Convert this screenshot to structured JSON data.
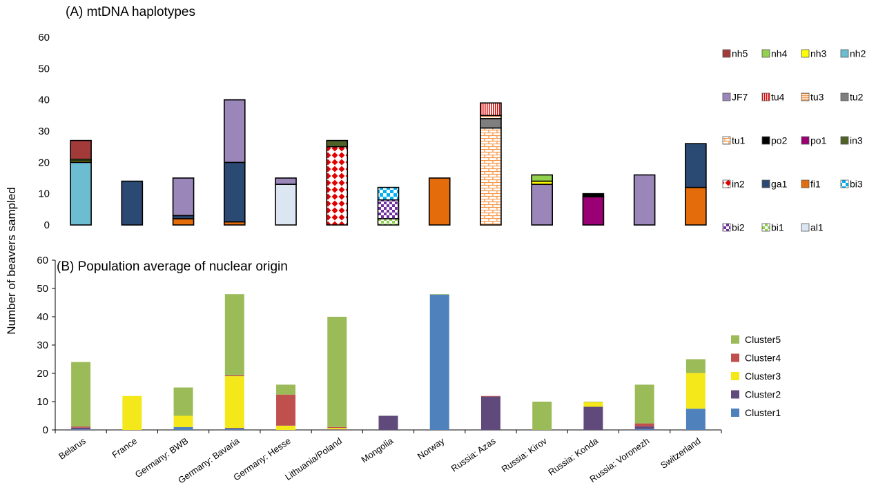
{
  "y_axis_label": "Number of beavers sampled",
  "chart_data": [
    {
      "type": "bar",
      "stacked": true,
      "title": "(A) mtDNA haplotypes",
      "xlabel": "",
      "ylabel": "Number of beavers sampled",
      "ylim": [
        0,
        60
      ],
      "yticks": [
        0,
        10,
        20,
        30,
        40,
        50,
        60
      ],
      "grid": false,
      "legend_position": "right",
      "categories": [
        "Belarus",
        "France",
        "Germany: BWB",
        "Germany: Bavaria",
        "Germany: Hesse",
        "Lithuania/Poland",
        "Mongolia",
        "Norway",
        "Russia: Azas",
        "Russia: Kirov",
        "Russia: Konda",
        "Russia: Voronezh",
        "Switzerland"
      ],
      "series": [
        {
          "name": "al1",
          "color": "#DCE6F2",
          "pattern": "solid",
          "values": [
            0,
            0,
            0,
            0,
            13,
            0,
            0,
            0,
            0,
            0,
            0,
            0,
            0
          ]
        },
        {
          "name": "bi1",
          "color": "#92D050",
          "pattern": "checker-small",
          "values": [
            0,
            0,
            0,
            0,
            0,
            0,
            2,
            0,
            0,
            0,
            0,
            0,
            0
          ]
        },
        {
          "name": "bi2",
          "color": "#7030A0",
          "pattern": "checker-small",
          "values": [
            0,
            0,
            0,
            0,
            0,
            0,
            6,
            0,
            0,
            0,
            0,
            0,
            0
          ]
        },
        {
          "name": "bi3",
          "color": "#00B0F0",
          "pattern": "checker-large",
          "values": [
            0,
            0,
            0,
            0,
            0,
            0,
            4,
            0,
            0,
            0,
            0,
            0,
            0
          ]
        },
        {
          "name": "fi1",
          "color": "#E46C0A",
          "pattern": "solid",
          "values": [
            0,
            0,
            2,
            1,
            0,
            0,
            0,
            15,
            0,
            0,
            0,
            0,
            12
          ]
        },
        {
          "name": "ga1",
          "color": "#2B4A73",
          "pattern": "solid",
          "values": [
            0,
            14,
            1,
            19,
            0,
            0,
            0,
            0,
            0,
            0,
            0,
            0,
            14
          ]
        },
        {
          "name": "in2",
          "color": "#E00000",
          "pattern": "diamond",
          "values": [
            0,
            0,
            0,
            0,
            0,
            25,
            0,
            0,
            0,
            0,
            0,
            0,
            0
          ]
        },
        {
          "name": "in3",
          "color": "#4F6228",
          "pattern": "solid",
          "values": [
            0,
            0,
            0,
            0,
            0,
            2,
            0,
            0,
            0,
            0,
            0,
            0,
            0
          ]
        },
        {
          "name": "po1",
          "color": "#990073",
          "pattern": "solid",
          "values": [
            0,
            0,
            0,
            0,
            0,
            0,
            0,
            0,
            0,
            0,
            9,
            0,
            0
          ]
        },
        {
          "name": "po2",
          "color": "#000000",
          "pattern": "solid",
          "values": [
            0,
            0,
            0,
            0,
            0,
            0,
            0,
            0,
            0,
            0,
            1,
            0,
            0
          ]
        },
        {
          "name": "tu1",
          "color": "#F79646",
          "pattern": "brick",
          "values": [
            0,
            0,
            0,
            0,
            0,
            0,
            0,
            0,
            31,
            0,
            0,
            0,
            0
          ]
        },
        {
          "name": "tu2",
          "color": "#7F7F7F",
          "pattern": "solid",
          "values": [
            0,
            0,
            0,
            0,
            0,
            0,
            0,
            0,
            3,
            0,
            0,
            0,
            0
          ]
        },
        {
          "name": "tu3",
          "color": "#F79646",
          "pattern": "hlines",
          "values": [
            0,
            0,
            0,
            0,
            0,
            0,
            0,
            0,
            1,
            0,
            0,
            0,
            0
          ]
        },
        {
          "name": "tu4",
          "color": "#E00000",
          "pattern": "vlines",
          "values": [
            0,
            0,
            0,
            0,
            0,
            0,
            0,
            0,
            4,
            0,
            0,
            0,
            0
          ]
        },
        {
          "name": "JF7",
          "color": "#9B86B9",
          "pattern": "solid",
          "values": [
            0,
            0,
            12,
            20,
            2,
            0,
            0,
            0,
            0,
            13,
            0,
            16,
            0
          ]
        },
        {
          "name": "nh2",
          "color": "#6CBCD2",
          "pattern": "solid",
          "values": [
            20,
            0,
            0,
            0,
            0,
            0,
            0,
            0,
            0,
            0,
            0,
            0,
            0
          ]
        },
        {
          "name": "nh3",
          "color": "#FFFF00",
          "pattern": "solid",
          "values": [
            0.5,
            0,
            0,
            0,
            0,
            0,
            0,
            0,
            0,
            1,
            0,
            0,
            0
          ]
        },
        {
          "name": "nh4",
          "color": "#92D050",
          "pattern": "solid",
          "values": [
            0.5,
            0,
            0,
            0,
            0,
            0,
            0,
            0,
            0,
            2,
            0,
            0,
            0
          ]
        },
        {
          "name": "nh5",
          "color": "#A33A3A",
          "pattern": "solid",
          "values": [
            6,
            0,
            0,
            0,
            0,
            0,
            0,
            0,
            0,
            0,
            0,
            0,
            0
          ]
        }
      ],
      "legend_rows": [
        [
          "nh5",
          "nh4",
          "nh3",
          "nh2"
        ],
        [
          "JF7",
          "tu4",
          "tu3",
          "tu2"
        ],
        [
          "tu1",
          "po2",
          "po1",
          "in3"
        ],
        [
          "in2",
          "ga1",
          "fi1",
          "bi3"
        ],
        [
          "bi2",
          "bi1",
          "al1"
        ]
      ]
    },
    {
      "type": "bar",
      "stacked": true,
      "title": "(B) Population average of nuclear origin",
      "xlabel": "",
      "ylabel": "Number of beavers sampled",
      "ylim": [
        0,
        60
      ],
      "yticks": [
        0,
        10,
        20,
        30,
        40,
        50,
        60
      ],
      "grid": false,
      "legend_position": "right",
      "categories": [
        "Belarus",
        "France",
        "Germany: BWB",
        "Germany: Bavaria",
        "Germany: Hesse",
        "Lithuania/Poland",
        "Mongolia",
        "Norway",
        "Russia: Azas",
        "Russia: Kirov",
        "Russia: Konda",
        "Russia: Voronezh",
        "Switzerland"
      ],
      "series": [
        {
          "name": "Cluster1",
          "color": "#4F81BD",
          "values": [
            0.2,
            0,
            1,
            0.3,
            0,
            0,
            0,
            47.8,
            0,
            0,
            0,
            0.3,
            7.5
          ]
        },
        {
          "name": "Cluster2",
          "color": "#604A7B",
          "values": [
            0.6,
            0,
            0,
            0.4,
            0,
            0.2,
            5,
            0,
            11.8,
            0,
            8.2,
            1,
            0
          ]
        },
        {
          "name": "Cluster3",
          "color": "#F5E81A",
          "values": [
            0,
            12,
            4,
            18.3,
            1.5,
            0.5,
            0,
            0,
            0,
            0,
            1.6,
            0,
            12.6
          ]
        },
        {
          "name": "Cluster4",
          "color": "#C0504D",
          "values": [
            0.4,
            0,
            0,
            0.3,
            11,
            0.3,
            0,
            0,
            0.2,
            0,
            0,
            1,
            0
          ]
        },
        {
          "name": "Cluster5",
          "color": "#9BBB59",
          "values": [
            22.8,
            0,
            10,
            28.7,
            3.5,
            39,
            0,
            0.2,
            0,
            10,
            0.2,
            13.7,
            4.9
          ]
        }
      ],
      "legend_order": [
        "Cluster5",
        "Cluster4",
        "Cluster3",
        "Cluster2",
        "Cluster1"
      ]
    }
  ]
}
